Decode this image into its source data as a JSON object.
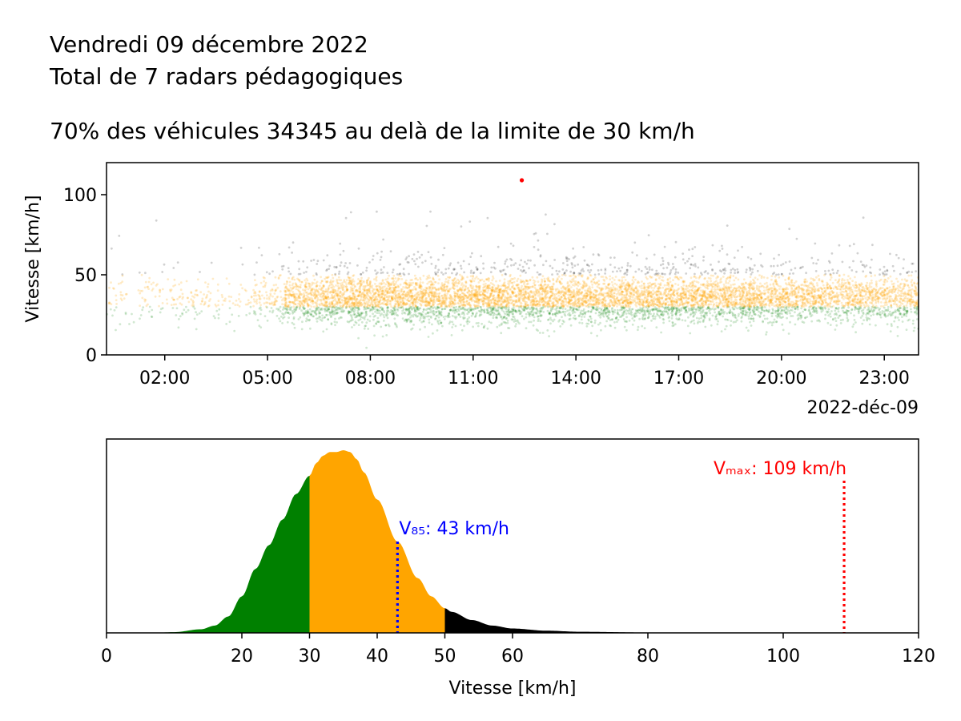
{
  "header": {
    "title_line1": "Vendredi 09 décembre 2022",
    "title_line2": "Total de 7 radars pédagogiques",
    "title_line3": "70% des véhicules 34345 au delà de la limite de 30 km/h"
  },
  "chart_data": [
    {
      "type": "scatter",
      "title": "",
      "ylabel": "Vitesse [km/h]",
      "xlabel": "",
      "x_range_hours": [
        0.3,
        24.0
      ],
      "ylim": [
        0,
        120
      ],
      "x_ticks": [
        "02:00",
        "05:00",
        "08:00",
        "11:00",
        "14:00",
        "17:00",
        "20:00",
        "23:00"
      ],
      "x_tick_hours": [
        2,
        5,
        8,
        11,
        14,
        17,
        20,
        23
      ],
      "y_ticks": [
        0,
        50,
        100
      ],
      "date_label": "2022-déc-09",
      "speed_limit": 30,
      "bands": [
        {
          "name": "below_limit",
          "range": [
            0,
            30
          ],
          "color": "#008000"
        },
        {
          "name": "above_limit",
          "range": [
            30,
            50
          ],
          "color": "#FFA500"
        },
        {
          "name": "above_50",
          "range": [
            50,
            120
          ],
          "color": "#000000"
        }
      ],
      "max_point": {
        "time": "12:25",
        "hour": 12.42,
        "speed": 109,
        "color": "#FF0000"
      },
      "grid": false
    },
    {
      "type": "area",
      "title": "",
      "xlabel": "Vitesse [km/h]",
      "ylabel": "",
      "xlim": [
        0,
        120
      ],
      "x_ticks": [
        0,
        20,
        30,
        40,
        50,
        60,
        80,
        100,
        120
      ],
      "density_x": [
        7,
        10,
        14,
        16,
        18,
        20,
        22,
        24,
        26,
        28,
        30,
        31,
        32,
        33,
        34,
        35,
        36,
        37,
        38,
        40,
        43,
        46,
        48,
        50,
        51,
        54,
        57,
        60,
        65,
        70,
        80,
        90,
        100,
        110,
        120
      ],
      "density_y": [
        0.0,
        0.004,
        0.02,
        0.04,
        0.09,
        0.2,
        0.35,
        0.48,
        0.62,
        0.76,
        0.86,
        0.93,
        0.97,
        0.99,
        0.99,
        1.0,
        0.99,
        0.95,
        0.88,
        0.73,
        0.5,
        0.3,
        0.2,
        0.135,
        0.115,
        0.07,
        0.04,
        0.024,
        0.012,
        0.006,
        0.002,
        0.001,
        0.0005,
        0.0002,
        0.0
      ],
      "segments": [
        {
          "range": [
            7,
            30
          ],
          "color": "#008000"
        },
        {
          "range": [
            30,
            50
          ],
          "color": "#FFA500"
        },
        {
          "range": [
            50,
            120
          ],
          "color": "#000000"
        }
      ],
      "annotations": [
        {
          "name": "V85",
          "label": "V₈₅: 43 km/h",
          "x": 43,
          "color": "#0000FF"
        },
        {
          "name": "Vmax",
          "label": "Vₘₐₓ: 109 km/h",
          "x": 109,
          "color": "#FF0000"
        }
      ]
    }
  ]
}
